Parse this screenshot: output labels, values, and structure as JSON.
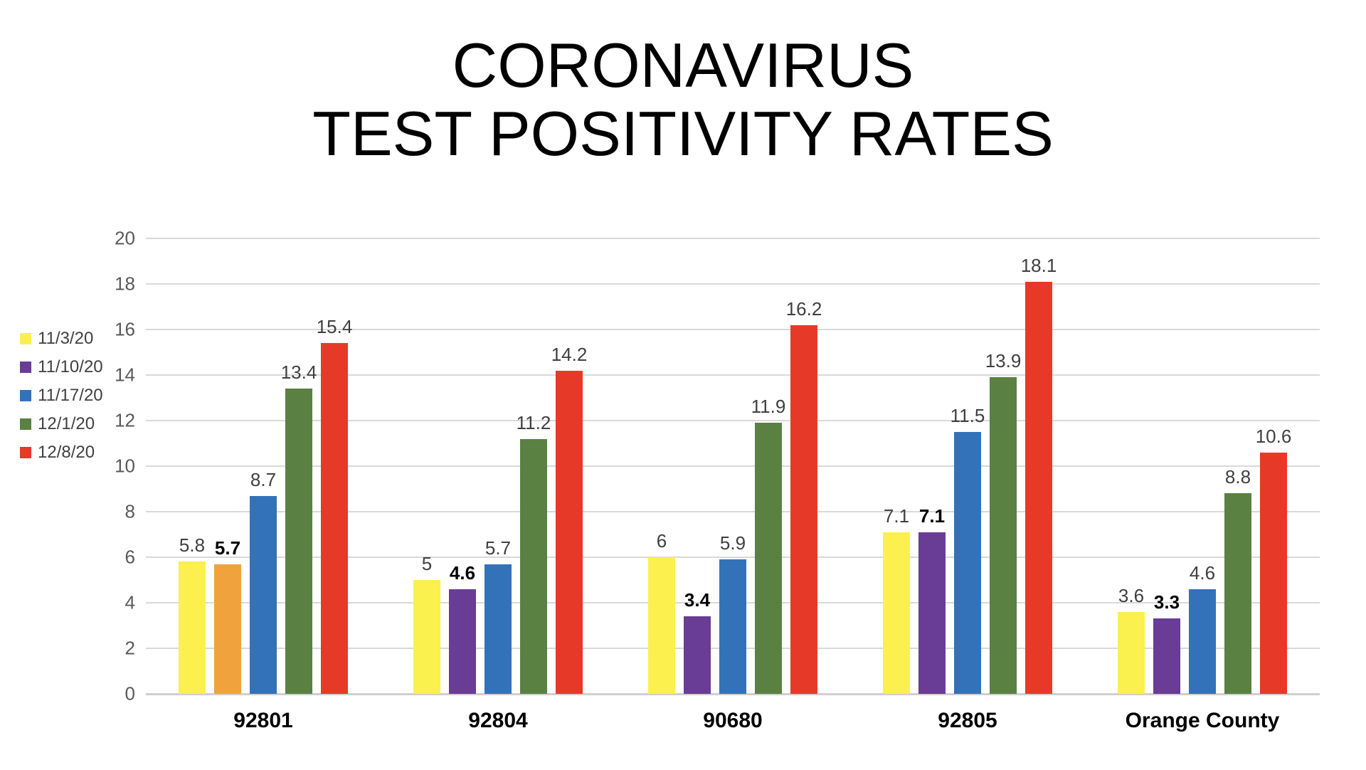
{
  "title": {
    "line1": "CORONAVIRUS",
    "line2": "TEST POSITIVITY RATES"
  },
  "chart_data": {
    "type": "bar",
    "title": "CORONAVIRUS TEST POSITIVITY RATES",
    "categories": [
      "92801",
      "92804",
      "90680",
      "92805",
      "Orange County"
    ],
    "series": [
      {
        "name": "11/3/20",
        "color": "#FBF04D",
        "values": [
          5.8,
          5,
          6,
          7.1,
          3.6
        ],
        "labels": [
          "5.8",
          "5",
          "6",
          "7.1",
          "3.6"
        ]
      },
      {
        "name": "11/10/20",
        "color": "#693C96",
        "values": [
          5.7,
          4.6,
          3.4,
          7.1,
          3.3
        ],
        "labels": [
          "5.7",
          "4.6",
          "3.4",
          "7.1",
          "3.3"
        ],
        "labels_bold": true,
        "bar_color_overrides": {
          "0": "#F0A33C"
        }
      },
      {
        "name": "11/17/20",
        "color": "#3372B9",
        "values": [
          8.7,
          5.7,
          5.9,
          11.5,
          4.6
        ],
        "labels": [
          "8.7",
          "5.7",
          "5.9",
          "11.5",
          "4.6"
        ]
      },
      {
        "name": "12/1/20",
        "color": "#5A8142",
        "values": [
          13.4,
          11.2,
          11.9,
          13.9,
          8.8
        ],
        "labels": [
          "13.4",
          "11.2",
          "11.9",
          "13.9",
          "8.8"
        ]
      },
      {
        "name": "12/8/20",
        "color": "#E73928",
        "values": [
          15.4,
          14.2,
          16.2,
          18.1,
          10.6
        ],
        "labels": [
          "15.4",
          "14.2",
          "16.2",
          "18.1",
          "10.6"
        ]
      }
    ],
    "ylim": [
      0,
      20
    ],
    "yticks": [
      0,
      2,
      4,
      6,
      8,
      10,
      12,
      14,
      16,
      18,
      20
    ],
    "grid": true,
    "legend_position": "left",
    "xlabel": "",
    "ylabel": ""
  },
  "colors": {
    "background": "#FFFFFF",
    "grid": "#D9D9D9",
    "axis_line": "#D0CECE",
    "tick_text": "#595959",
    "data_label": "#3F3F3F",
    "data_label_bold": "#000000",
    "category_label": "#000000",
    "legend_text": "#404040"
  }
}
